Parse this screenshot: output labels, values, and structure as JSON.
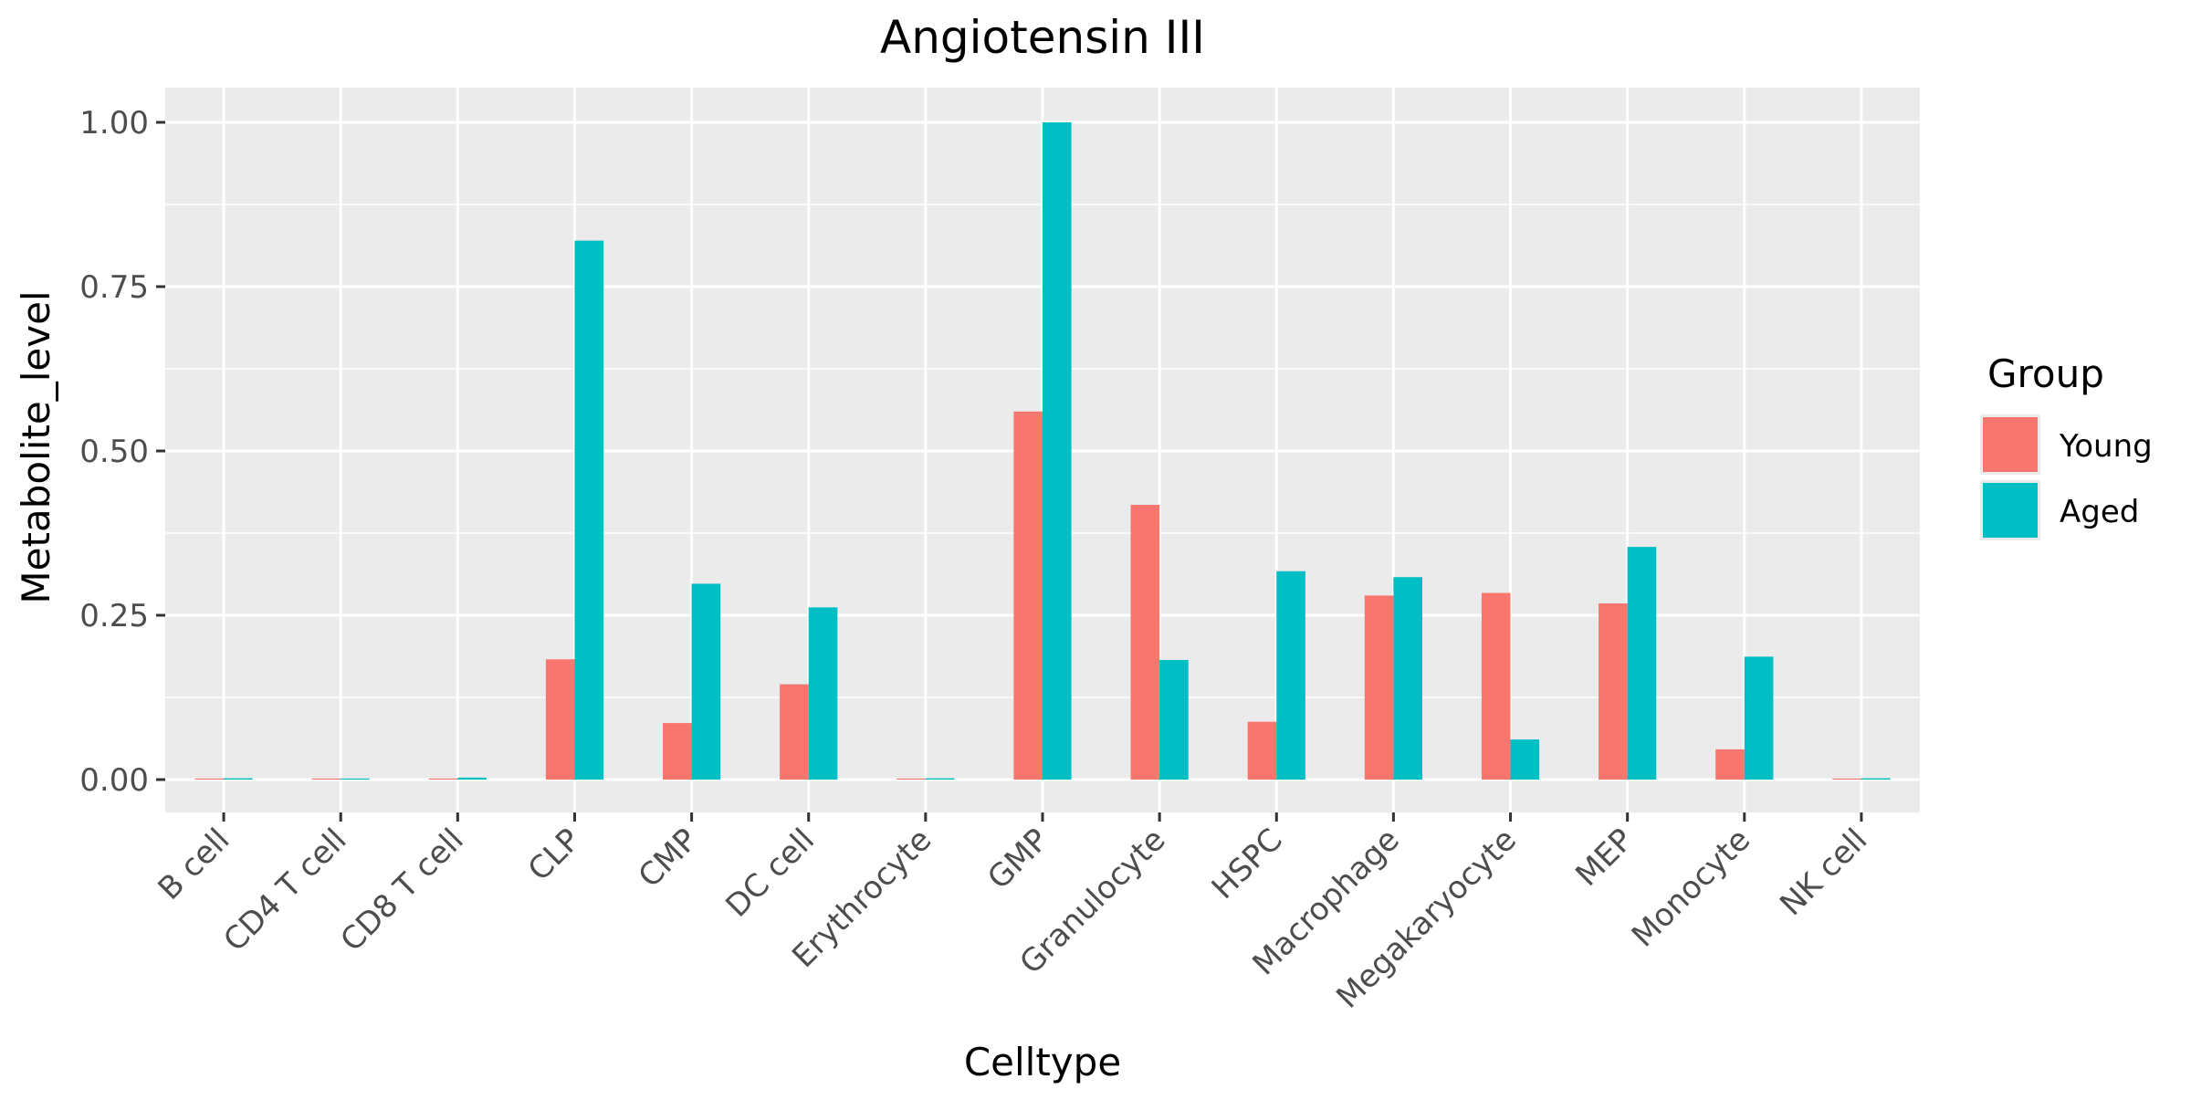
{
  "chart_data": {
    "type": "bar",
    "title": "Angiotensin III",
    "xlabel": "Celltype",
    "ylabel": "Metabolite_level",
    "ylim": [
      -0.05,
      1.05
    ],
    "yticks": [
      0.0,
      0.25,
      0.5,
      0.75,
      1.0
    ],
    "ytick_labels": [
      "0.00",
      "0.25",
      "0.50",
      "0.75",
      "1.00"
    ],
    "categories": [
      "B cell",
      "CD4 T cell",
      "CD8 T cell",
      "CLP",
      "CMP",
      "DC cell",
      "Erythrocyte",
      "GMP",
      "Granulocyte",
      "HSPC",
      "Macrophage",
      "Megakaryocyte",
      "MEP",
      "Monocyte",
      "NK cell"
    ],
    "series": [
      {
        "name": "Young",
        "color": "#F8766D",
        "values": [
          0.0,
          0.0,
          0.0,
          0.183,
          0.086,
          0.145,
          0.0,
          0.56,
          0.418,
          0.088,
          0.28,
          0.284,
          0.268,
          0.046,
          0.0
        ]
      },
      {
        "name": "Aged",
        "color": "#00BFC4",
        "values": [
          0.002,
          0.001,
          0.003,
          0.82,
          0.298,
          0.262,
          0.002,
          1.0,
          0.182,
          0.317,
          0.308,
          0.061,
          0.354,
          0.187,
          0.002
        ]
      }
    ],
    "legend": {
      "title": "Group",
      "position": "right"
    },
    "grid": true,
    "panel_background": "#EBEBEB"
  }
}
